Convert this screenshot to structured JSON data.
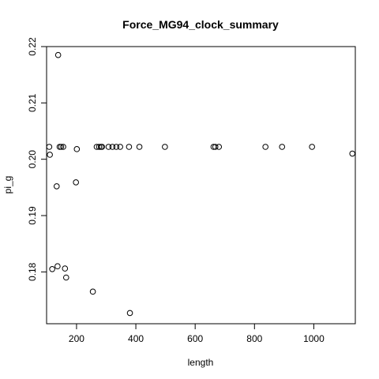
{
  "chart_data": {
    "type": "scatter",
    "title": "Force_MG94_clock_summary",
    "xlabel": "length",
    "ylabel": "pi_g",
    "xlim": [
      99,
      1140
    ],
    "ylim": [
      0.1708,
      0.22
    ],
    "xticks": [
      200,
      400,
      600,
      800,
      1000
    ],
    "xtick_labels": [
      "200",
      "400",
      "600",
      "800",
      "1000"
    ],
    "yticks": [
      0.18,
      0.19,
      0.2,
      0.21,
      0.22
    ],
    "ytick_labels": [
      "0.18",
      "0.19",
      "0.20",
      "0.21",
      "0.22"
    ],
    "grid": false,
    "legend": false,
    "points": [
      {
        "x": 108,
        "y": 0.2022
      },
      {
        "x": 110,
        "y": 0.2008
      },
      {
        "x": 118,
        "y": 0.1805
      },
      {
        "x": 133,
        "y": 0.1952
      },
      {
        "x": 136,
        "y": 0.181
      },
      {
        "x": 138,
        "y": 0.2185
      },
      {
        "x": 143,
        "y": 0.2022
      },
      {
        "x": 148,
        "y": 0.2022
      },
      {
        "x": 155,
        "y": 0.2022
      },
      {
        "x": 161,
        "y": 0.1806
      },
      {
        "x": 165,
        "y": 0.179
      },
      {
        "x": 198,
        "y": 0.1959
      },
      {
        "x": 201,
        "y": 0.2018
      },
      {
        "x": 255,
        "y": 0.1765
      },
      {
        "x": 268,
        "y": 0.2022
      },
      {
        "x": 276,
        "y": 0.2022
      },
      {
        "x": 282,
        "y": 0.2022
      },
      {
        "x": 286,
        "y": 0.2022
      },
      {
        "x": 308,
        "y": 0.2022
      },
      {
        "x": 321,
        "y": 0.2022
      },
      {
        "x": 334,
        "y": 0.2022
      },
      {
        "x": 347,
        "y": 0.2022
      },
      {
        "x": 377,
        "y": 0.2022
      },
      {
        "x": 380,
        "y": 0.1727
      },
      {
        "x": 412,
        "y": 0.2022
      },
      {
        "x": 498,
        "y": 0.2022
      },
      {
        "x": 662,
        "y": 0.2022
      },
      {
        "x": 668,
        "y": 0.2022
      },
      {
        "x": 680,
        "y": 0.2022
      },
      {
        "x": 837,
        "y": 0.2022
      },
      {
        "x": 893,
        "y": 0.2022
      },
      {
        "x": 994,
        "y": 0.2022
      },
      {
        "x": 1130,
        "y": 0.201
      }
    ]
  }
}
